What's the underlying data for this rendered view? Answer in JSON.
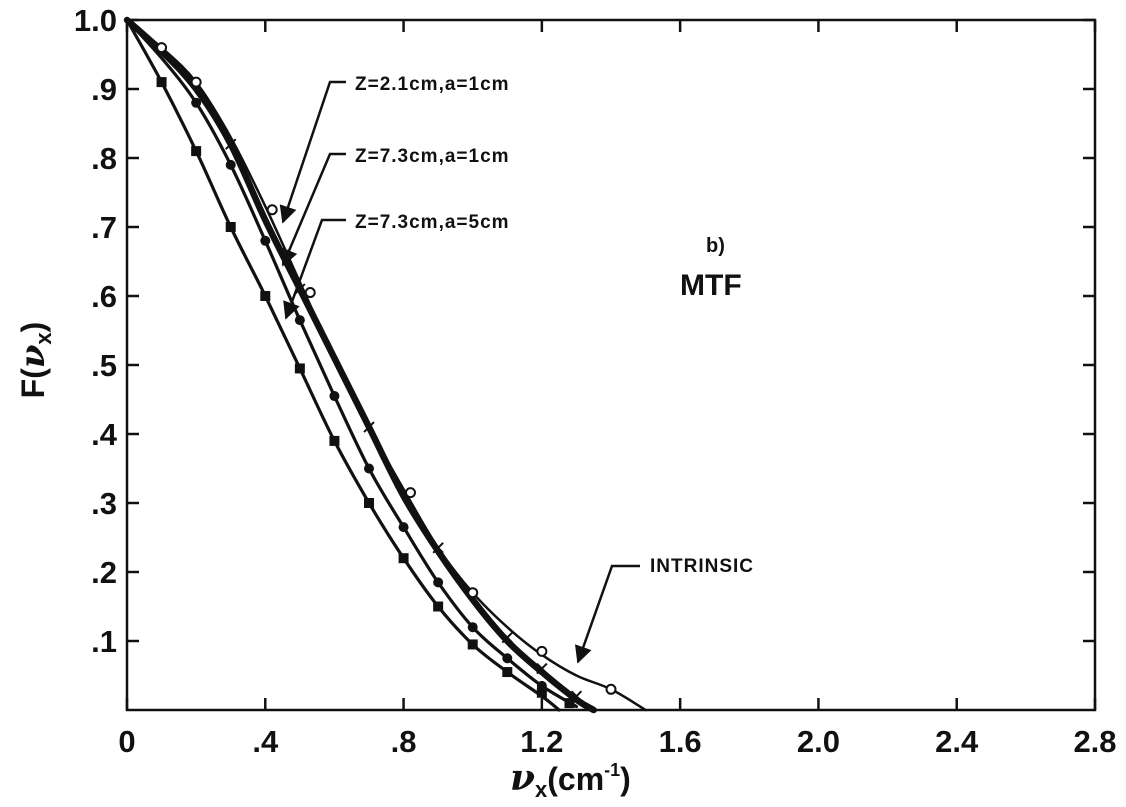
{
  "chart_data": {
    "type": "line",
    "title": "",
    "panel_label": "b)",
    "panel_title": "MTF",
    "xlabel": "ν_x(cm⁻¹)",
    "xlabel_parts": {
      "nu": "ν",
      "sub": "x",
      "unit": "(cm",
      "exp": "-1",
      "close": ")"
    },
    "ylabel": "F(ν_x)",
    "ylabel_parts": {
      "f": "F(",
      "nu": "ν",
      "sub": "x",
      "close": ")"
    },
    "xlim": [
      0,
      2.8
    ],
    "ylim": [
      0,
      1.0
    ],
    "x_ticks": [
      {
        "value": 0,
        "label": "0"
      },
      {
        "value": 0.4,
        "label": ".4"
      },
      {
        "value": 0.8,
        "label": ".8"
      },
      {
        "value": 1.2,
        "label": "1.2"
      },
      {
        "value": 1.6,
        "label": "1.6"
      },
      {
        "value": 2.0,
        "label": "2.0"
      },
      {
        "value": 2.4,
        "label": "2.4"
      },
      {
        "value": 2.8,
        "label": "2.8"
      }
    ],
    "y_ticks": [
      {
        "value": 0.1,
        "label": ".1"
      },
      {
        "value": 0.2,
        "label": ".2"
      },
      {
        "value": 0.3,
        "label": ".3"
      },
      {
        "value": 0.4,
        "label": ".4"
      },
      {
        "value": 0.5,
        "label": ".5"
      },
      {
        "value": 0.6,
        "label": ".6"
      },
      {
        "value": 0.7,
        "label": ".7"
      },
      {
        "value": 0.8,
        "label": ".8"
      },
      {
        "value": 0.9,
        "label": ".9"
      },
      {
        "value": 1.0,
        "label": "1.0"
      }
    ],
    "grid": false,
    "series": [
      {
        "name": "INTRINSIC",
        "marker": "open-circle",
        "line_weight": "thin",
        "x": [
          0,
          0.1,
          0.2,
          0.3,
          0.4,
          0.5,
          0.6,
          0.7,
          0.8,
          0.9,
          1.0,
          1.1,
          1.2,
          1.3,
          1.4,
          1.5
        ],
        "y": [
          1.0,
          0.96,
          0.91,
          0.83,
          0.73,
          0.62,
          0.51,
          0.41,
          0.32,
          0.235,
          0.17,
          0.12,
          0.08,
          0.05,
          0.03,
          0.0
        ],
        "marker_x": [
          0.1,
          0.2,
          0.42,
          0.53,
          0.82,
          1.0,
          1.2,
          1.4
        ],
        "marker_y": [
          0.96,
          0.91,
          0.725,
          0.605,
          0.315,
          0.17,
          0.085,
          0.03
        ]
      },
      {
        "name": "Z=2.1cm,a=1cm",
        "marker": "cross",
        "line_weight": "thick",
        "x": [
          0,
          0.1,
          0.2,
          0.3,
          0.4,
          0.5,
          0.6,
          0.7,
          0.8,
          0.9,
          1.0,
          1.1,
          1.2,
          1.3,
          1.35
        ],
        "y": [
          1.0,
          0.955,
          0.9,
          0.82,
          0.71,
          0.61,
          0.51,
          0.41,
          0.31,
          0.23,
          0.16,
          0.1,
          0.055,
          0.015,
          0.0
        ],
        "marker_x": [
          0.3,
          0.5,
          0.7,
          0.9,
          1.1,
          1.2,
          1.3
        ],
        "marker_y": [
          0.82,
          0.61,
          0.41,
          0.235,
          0.105,
          0.06,
          0.02
        ]
      },
      {
        "name": "Z=7.3cm,a=1cm",
        "marker": "filled-circle",
        "line_weight": "medium",
        "x": [
          0,
          0.1,
          0.2,
          0.3,
          0.4,
          0.5,
          0.6,
          0.7,
          0.8,
          0.9,
          1.0,
          1.1,
          1.2,
          1.3
        ],
        "y": [
          1.0,
          0.945,
          0.88,
          0.79,
          0.68,
          0.565,
          0.455,
          0.35,
          0.265,
          0.185,
          0.12,
          0.075,
          0.035,
          0.005
        ],
        "marker_x": [
          0.2,
          0.3,
          0.4,
          0.5,
          0.6,
          0.7,
          0.8,
          0.9,
          1.0,
          1.1,
          1.2,
          1.28
        ],
        "marker_y": [
          0.88,
          0.79,
          0.68,
          0.565,
          0.455,
          0.35,
          0.265,
          0.185,
          0.12,
          0.075,
          0.035,
          0.01
        ]
      },
      {
        "name": "Z=7.3cm,a=5cm",
        "marker": "filled-square",
        "line_weight": "medium",
        "x": [
          0,
          0.1,
          0.2,
          0.3,
          0.4,
          0.5,
          0.6,
          0.7,
          0.8,
          0.9,
          1.0,
          1.1,
          1.2,
          1.25
        ],
        "y": [
          1.0,
          0.91,
          0.81,
          0.7,
          0.6,
          0.495,
          0.39,
          0.3,
          0.22,
          0.15,
          0.095,
          0.055,
          0.02,
          0.0
        ],
        "marker_x": [
          0.1,
          0.2,
          0.3,
          0.4,
          0.5,
          0.6,
          0.7,
          0.8,
          0.9,
          1.0,
          1.1,
          1.2,
          1.28
        ],
        "marker_y": [
          0.91,
          0.81,
          0.7,
          0.6,
          0.495,
          0.39,
          0.3,
          0.22,
          0.15,
          0.095,
          0.055,
          0.025,
          0.01
        ]
      }
    ],
    "annotations": [
      {
        "text": "Z=2.1cm,a=1cm",
        "target_series": "Z=2.1cm,a=1cm"
      },
      {
        "text": "Z=7.3cm,a=1cm",
        "target_series": "Z=7.3cm,a=1cm"
      },
      {
        "text": "Z=7.3cm,a=5cm",
        "target_series": "Z=7.3cm,a=5cm"
      },
      {
        "text": "INTRINSIC",
        "target_series": "INTRINSIC"
      }
    ]
  }
}
